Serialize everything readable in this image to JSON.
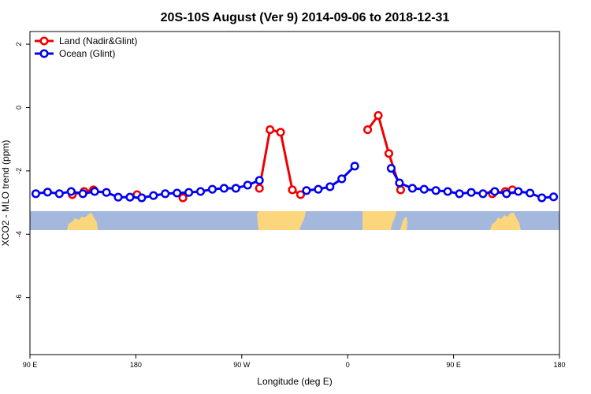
{
  "chart_data": {
    "type": "line",
    "title": "20S-10S August (Ver 9)   2014-09-06 to 2018-12-31",
    "xlabel": "Longitude (deg E)",
    "ylabel": "XCO2 - MLO trend (ppm)",
    "xlim": [
      90,
      540
    ],
    "ylim": [
      -7.8,
      2.4
    ],
    "xticks": [
      {
        "value": 90,
        "label": "90 E"
      },
      {
        "value": 180,
        "label": "180"
      },
      {
        "value": 270,
        "label": "90 W"
      },
      {
        "value": 360,
        "label": "0"
      },
      {
        "value": 450,
        "label": "90 E"
      },
      {
        "value": 540,
        "label": "180"
      }
    ],
    "yticks": [
      {
        "value": 2,
        "label": "2"
      },
      {
        "value": 0,
        "label": "0"
      },
      {
        "value": -2,
        "label": "-2"
      },
      {
        "value": -4,
        "label": "-4"
      },
      {
        "value": -6,
        "label": "-6"
      }
    ],
    "legend_position": "top-left",
    "series": [
      {
        "name": "Land (Nadir&Glint)",
        "color": "#ee0000",
        "segments": [
          [
            [
              126,
              -2.75
            ],
            [
              136,
              -2.65
            ],
            [
              144,
              -2.6
            ]
          ],
          [
            [
              181,
              -2.75
            ]
          ],
          [
            [
              220,
              -2.85
            ]
          ],
          [
            [
              285,
              -2.55
            ],
            [
              294,
              -0.7
            ],
            [
              303,
              -0.78
            ],
            [
              313,
              -2.6
            ],
            [
              320,
              -2.75
            ]
          ],
          [
            [
              377,
              -0.7
            ],
            [
              386,
              -0.25
            ],
            [
              395,
              -1.45
            ],
            [
              405,
              -2.6
            ]
          ],
          [
            [
              483,
              -2.72
            ],
            [
              494,
              -2.65
            ],
            [
              500,
              -2.6
            ]
          ]
        ]
      },
      {
        "name": "Ocean (Glint)",
        "color": "#0000ee",
        "segments": [
          [
            [
              95,
              -2.72
            ],
            [
              105,
              -2.67
            ],
            [
              115,
              -2.72
            ],
            [
              125,
              -2.65
            ],
            [
              135,
              -2.72
            ],
            [
              145,
              -2.65
            ],
            [
              155,
              -2.68
            ],
            [
              165,
              -2.83
            ],
            [
              175,
              -2.83
            ],
            [
              185,
              -2.85
            ],
            [
              195,
              -2.78
            ],
            [
              205,
              -2.72
            ],
            [
              215,
              -2.7
            ],
            [
              225,
              -2.68
            ],
            [
              235,
              -2.65
            ],
            [
              245,
              -2.58
            ],
            [
              255,
              -2.55
            ],
            [
              265,
              -2.55
            ],
            [
              275,
              -2.45
            ],
            [
              285,
              -2.3
            ]
          ],
          [
            [
              325,
              -2.62
            ],
            [
              335,
              -2.58
            ],
            [
              345,
              -2.5
            ],
            [
              355,
              -2.25
            ],
            [
              366,
              -1.85
            ]
          ],
          [
            [
              397,
              -1.92
            ],
            [
              404,
              -2.38
            ],
            [
              415,
              -2.55
            ],
            [
              425,
              -2.58
            ],
            [
              435,
              -2.62
            ],
            [
              445,
              -2.65
            ],
            [
              455,
              -2.72
            ],
            [
              465,
              -2.68
            ],
            [
              475,
              -2.72
            ],
            [
              485,
              -2.65
            ],
            [
              495,
              -2.72
            ],
            [
              505,
              -2.65
            ],
            [
              515,
              -2.7
            ],
            [
              525,
              -2.85
            ],
            [
              535,
              -2.82
            ]
          ]
        ]
      }
    ]
  },
  "map_strip": {
    "ocean_color": "#a3b8dc",
    "land_color": "#fbd67d"
  }
}
